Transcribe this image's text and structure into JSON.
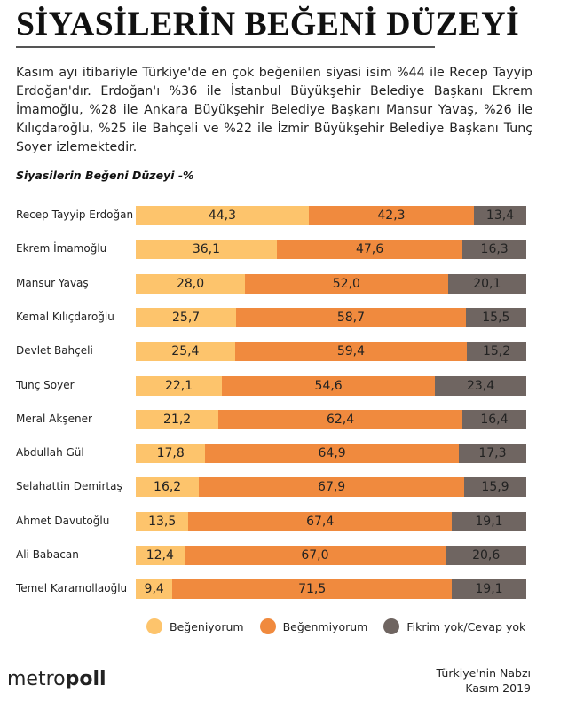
{
  "title": "SİYASİLERİN BEĞENİ DÜZEYİ",
  "intro": "Kasım ayı itibariyle Türkiye'de en çok beğenilen siyasi isim %44 ile Recep Tayyip Erdoğan'dır. Erdoğan'ı %36 ile İstanbul Büyükşehir Belediye Başkanı Ekrem İmamoğlu, %28 ile Ankara Büyükşehir Belediye Başkanı Mansur Yavaş, %26 ile Kılıçdaroğlu, %25 ile Bahçeli ve %22 ile İzmir Büyükşehir Belediye Başkanı Tunç Soyer izlemektedir.",
  "chart_data": {
    "type": "bar",
    "orientation": "horizontal",
    "stacked": true,
    "title": "Siyasilerin Beğeni Düzeyi -%",
    "categories": [
      "Recep Tayyip Erdoğan",
      "Ekrem İmamoğlu",
      "Mansur Yavaş",
      "Kemal Kılıçdaroğlu",
      "Devlet Bahçeli",
      "Tunç Soyer",
      "Meral Akşener",
      "Abdullah Gül",
      "Selahattin Demirtaş",
      "Ahmet Davutoğlu",
      "Ali Babacan",
      "Temel Karamollaoğlu"
    ],
    "series": [
      {
        "name": "Beğeniyorum",
        "color": "#fdc46c",
        "values": [
          "44,3",
          "36,1",
          "28,0",
          "25,7",
          "25,4",
          "22,1",
          "21,2",
          "17,8",
          "16,2",
          "13,5",
          "12,4",
          "9,4"
        ]
      },
      {
        "name": "Beğenmiyorum",
        "color": "#f08a3e",
        "values": [
          "42,3",
          "47,6",
          "52,0",
          "58,7",
          "59,4",
          "54,6",
          "62,4",
          "64,9",
          "67,9",
          "67,4",
          "67,0",
          "71,5"
        ]
      },
      {
        "name": "Fikrim yok/Cevap yok",
        "color": "#6f6561",
        "values": [
          "13,4",
          "16,3",
          "20,1",
          "15,5",
          "15,2",
          "23,4",
          "16,4",
          "17,3",
          "15,9",
          "19,1",
          "20,6",
          "19,1"
        ]
      }
    ],
    "legend_position": "bottom",
    "grid": false
  },
  "footer": {
    "logo": "metropoll",
    "logo_light": "metro",
    "logo_bold": "poll",
    "source_line1": "Türkiye'nin Nabzı",
    "source_line2": "Kasım 2019"
  }
}
